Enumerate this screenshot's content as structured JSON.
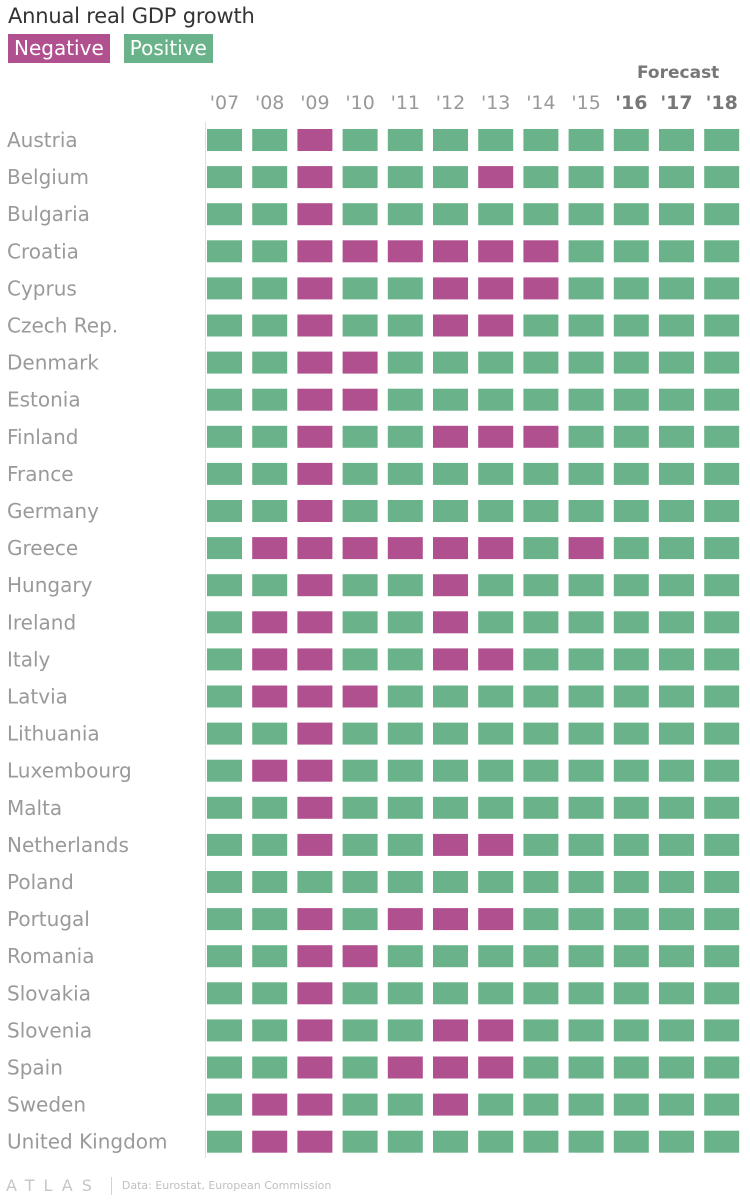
{
  "header": {
    "title": "Annual real GDP growth",
    "forecast_label": "Forecast"
  },
  "legend": {
    "negative": {
      "label": "Negative",
      "color": "#b0508f"
    },
    "positive": {
      "label": "Positive",
      "color": "#6ab38a"
    }
  },
  "footer": {
    "logo": "ATLAS",
    "source": "Data: Eurostat, European Commission"
  },
  "chart_data": {
    "type": "heatmap",
    "title": "Annual real GDP growth",
    "categories": [
      "'07",
      "'08",
      "'09",
      "'10",
      "'11",
      "'12",
      "'13",
      "'14",
      "'15",
      "'16",
      "'17",
      "'18"
    ],
    "forecast_years": [
      "'16",
      "'17",
      "'18"
    ],
    "countries": [
      "Austria",
      "Belgium",
      "Bulgaria",
      "Croatia",
      "Cyprus",
      "Czech Rep.",
      "Denmark",
      "Estonia",
      "Finland",
      "France",
      "Germany",
      "Greece",
      "Hungary",
      "Ireland",
      "Italy",
      "Latvia",
      "Lithuania",
      "Luxembourg",
      "Malta",
      "Netherlands",
      "Poland",
      "Portugal",
      "Romania",
      "Slovakia",
      "Slovenia",
      "Spain",
      "Sweden",
      "United Kingdom"
    ],
    "legend": [
      "Negative",
      "Positive"
    ],
    "values": [
      [
        1,
        1,
        0,
        1,
        1,
        1,
        1,
        1,
        1,
        1,
        1,
        1
      ],
      [
        1,
        1,
        0,
        1,
        1,
        1,
        0,
        1,
        1,
        1,
        1,
        1
      ],
      [
        1,
        1,
        0,
        1,
        1,
        1,
        1,
        1,
        1,
        1,
        1,
        1
      ],
      [
        1,
        1,
        0,
        0,
        0,
        0,
        0,
        0,
        1,
        1,
        1,
        1
      ],
      [
        1,
        1,
        0,
        1,
        1,
        0,
        0,
        0,
        1,
        1,
        1,
        1
      ],
      [
        1,
        1,
        0,
        1,
        1,
        0,
        0,
        1,
        1,
        1,
        1,
        1
      ],
      [
        1,
        1,
        0,
        0,
        1,
        1,
        1,
        1,
        1,
        1,
        1,
        1
      ],
      [
        1,
        1,
        0,
        0,
        1,
        1,
        1,
        1,
        1,
        1,
        1,
        1
      ],
      [
        1,
        1,
        0,
        1,
        1,
        0,
        0,
        0,
        1,
        1,
        1,
        1
      ],
      [
        1,
        1,
        0,
        1,
        1,
        1,
        1,
        1,
        1,
        1,
        1,
        1
      ],
      [
        1,
        1,
        0,
        1,
        1,
        1,
        1,
        1,
        1,
        1,
        1,
        1
      ],
      [
        1,
        0,
        0,
        0,
        0,
        0,
        0,
        1,
        0,
        1,
        1,
        1
      ],
      [
        1,
        1,
        0,
        1,
        1,
        0,
        1,
        1,
        1,
        1,
        1,
        1
      ],
      [
        1,
        0,
        0,
        1,
        1,
        0,
        1,
        1,
        1,
        1,
        1,
        1
      ],
      [
        1,
        0,
        0,
        1,
        1,
        0,
        0,
        1,
        1,
        1,
        1,
        1
      ],
      [
        1,
        0,
        0,
        0,
        1,
        1,
        1,
        1,
        1,
        1,
        1,
        1
      ],
      [
        1,
        1,
        0,
        1,
        1,
        1,
        1,
        1,
        1,
        1,
        1,
        1
      ],
      [
        1,
        0,
        0,
        1,
        1,
        1,
        1,
        1,
        1,
        1,
        1,
        1
      ],
      [
        1,
        1,
        0,
        1,
        1,
        1,
        1,
        1,
        1,
        1,
        1,
        1
      ],
      [
        1,
        1,
        0,
        1,
        1,
        0,
        0,
        1,
        1,
        1,
        1,
        1
      ],
      [
        1,
        1,
        1,
        1,
        1,
        1,
        1,
        1,
        1,
        1,
        1,
        1
      ],
      [
        1,
        1,
        0,
        1,
        0,
        0,
        0,
        1,
        1,
        1,
        1,
        1
      ],
      [
        1,
        1,
        0,
        0,
        1,
        1,
        1,
        1,
        1,
        1,
        1,
        1
      ],
      [
        1,
        1,
        0,
        1,
        1,
        1,
        1,
        1,
        1,
        1,
        1,
        1
      ],
      [
        1,
        1,
        0,
        1,
        1,
        0,
        0,
        1,
        1,
        1,
        1,
        1
      ],
      [
        1,
        1,
        0,
        1,
        0,
        0,
        0,
        1,
        1,
        1,
        1,
        1
      ],
      [
        1,
        0,
        0,
        1,
        1,
        0,
        1,
        1,
        1,
        1,
        1,
        1
      ],
      [
        1,
        0,
        0,
        1,
        1,
        1,
        1,
        1,
        1,
        1,
        1,
        1
      ]
    ],
    "value_encoding": {
      "0": "Negative",
      "1": "Positive"
    }
  }
}
